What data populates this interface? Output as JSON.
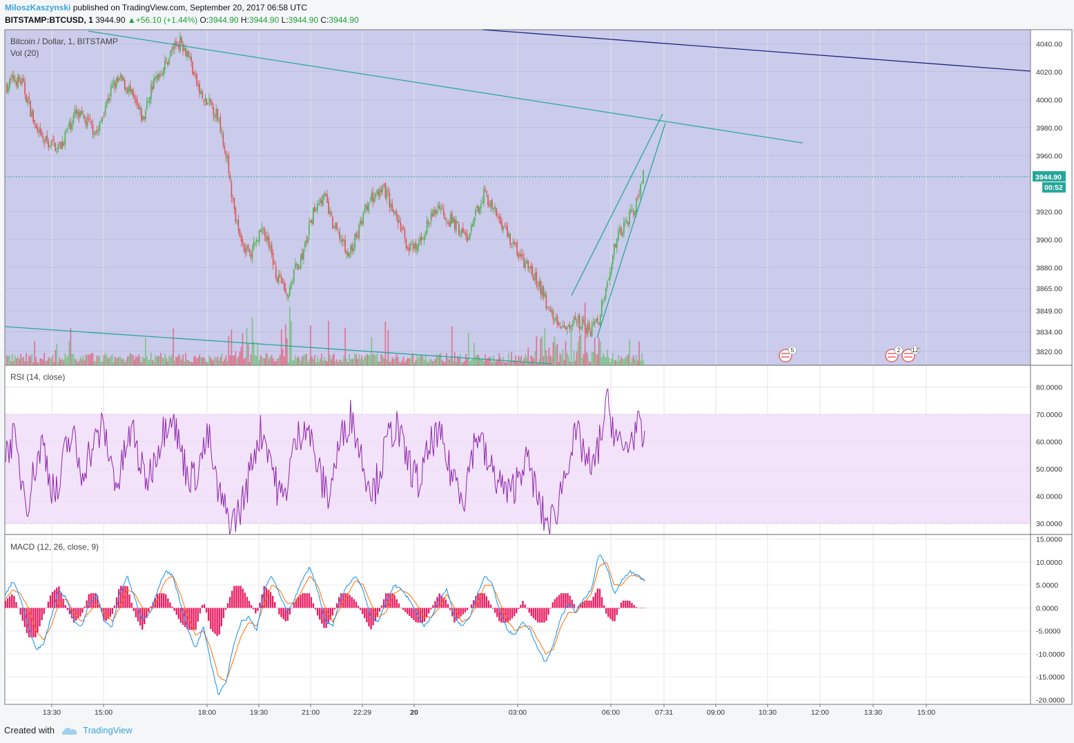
{
  "header": {
    "author": "MiloszKaszynski",
    "published_text": "published on TradingView.com, September 20, 2017 06:58 UTC",
    "symbol": "BITSTAMP:BTCUSD, 1",
    "last_price": "3944.90",
    "change": "+56.10 (+1.44%)",
    "open_label": "O:",
    "open": "3944.90",
    "high_label": "H:",
    "high": "3944.90",
    "low_label": "L:",
    "low": "3944.90",
    "close_label": "C:",
    "close": "3944.90"
  },
  "price_pane": {
    "title": "Bitcoin / Dollar, 1, BITSTAMP",
    "volume_label": "Vol (20)",
    "price_ticks": [
      "4040.00",
      "4020.00",
      "4000.00",
      "3980.00",
      "3960.00",
      "3920.00",
      "3900.00",
      "3880.00",
      "3865.00",
      "3849.00",
      "3834.00",
      "3820.00"
    ],
    "price_tick_values": [
      4040,
      4020,
      4000,
      3980,
      3960,
      3920,
      3900,
      3880,
      3865,
      3849,
      3834,
      3820
    ],
    "current_price_tag": "3944.90",
    "countdown_tag": "00:52",
    "event_badges": [
      "5",
      "2",
      "12"
    ]
  },
  "rsi_pane": {
    "title": "RSI (14, close)",
    "ticks": [
      "80.0000",
      "70.0000",
      "60.0000",
      "50.0000",
      "40.0000",
      "30.0000"
    ],
    "tick_values": [
      80,
      70,
      60,
      50,
      40,
      30
    ]
  },
  "macd_pane": {
    "title": "MACD (12, 26, close, 9)",
    "ticks": [
      "15.0000",
      "10.0000",
      "5.0000",
      "0.0000",
      "-5.0000",
      "-10.0000",
      "-15.0000",
      "-20.0000"
    ],
    "tick_values": [
      15,
      10,
      5,
      0,
      -5,
      -10,
      -15,
      -20
    ]
  },
  "time_axis": {
    "labels": [
      "13:30",
      "15:00",
      "18:00",
      "19:30",
      "21:00",
      "22:29",
      "20",
      "03:00",
      "06:00",
      "07:31",
      "09:00",
      "10:30",
      "12:00",
      "13:30",
      "15:00"
    ]
  },
  "footer": {
    "created_with": "Created with",
    "brand": "TradingView"
  },
  "colors": {
    "price_bg": "#cbcbeb",
    "rsi_band": "#f2e2fa",
    "rsi_line": "#8e24aa",
    "macd_line": "#2196f3",
    "signal_line": "#ff6d00",
    "histogram": "#e91e63",
    "candle_up": "#4caf50",
    "candle_down": "#d9534f",
    "trendline": "#26a69a",
    "trendline_dark": "#1a237e",
    "price_tag": "#26a69a"
  },
  "chart_data": [
    {
      "type": "candlestick",
      "name": "Bitcoin / Dollar, 1, BITSTAMP",
      "ylim": [
        3810,
        4050
      ],
      "x_labels": [
        "13:30",
        "15:00",
        "18:00",
        "19:30",
        "21:00",
        "22:29",
        "20",
        "03:00",
        "06:00",
        "07:31"
      ],
      "y": [
        4010,
        4015,
        4012,
        3995,
        3975,
        3970,
        3968,
        3966,
        3978,
        3990,
        3986,
        3982,
        3976,
        3996,
        4010,
        4014,
        4008,
        3996,
        3985,
        4008,
        4018,
        4026,
        4038,
        4042,
        4032,
        4012,
        3998,
        3996,
        3986,
        3960,
        3920,
        3900,
        3890,
        3900,
        3908,
        3885,
        3870,
        3862,
        3878,
        3888,
        3910,
        3928,
        3930,
        3910,
        3902,
        3888,
        3900,
        3916,
        3928,
        3932,
        3935,
        3920,
        3908,
        3894,
        3892,
        3905,
        3915,
        3925,
        3916,
        3912,
        3905,
        3900,
        3920,
        3935,
        3922,
        3915,
        3905,
        3895,
        3885,
        3878,
        3870,
        3858,
        3845,
        3838,
        3840,
        3842,
        3840,
        3835,
        3840,
        3862,
        3892,
        3905,
        3915,
        3925,
        3944.9
      ]
    },
    {
      "type": "line",
      "name": "RSI (14, close)",
      "ylim": [
        26,
        88
      ],
      "y": [
        55,
        62,
        48,
        38,
        52,
        60,
        45,
        40,
        58,
        62,
        48,
        55,
        60,
        66,
        52,
        44,
        58,
        64,
        50,
        46,
        56,
        64,
        72,
        60,
        50,
        46,
        54,
        62,
        44,
        36,
        30,
        34,
        42,
        56,
        64,
        58,
        44,
        38,
        54,
        62,
        68,
        56,
        46,
        40,
        54,
        64,
        70,
        58,
        48,
        42,
        52,
        62,
        66,
        56,
        50,
        44,
        54,
        62,
        60,
        50,
        46,
        40,
        56,
        64,
        52,
        48,
        44,
        40,
        46,
        54,
        48,
        36,
        30,
        32,
        44,
        56,
        62,
        56,
        48,
        60,
        74,
        64,
        56,
        60,
        66,
        58
      ]
    },
    {
      "type": "line",
      "name": "MACD (12, 26, close, 9)",
      "ylim": [
        -21,
        16
      ],
      "series": [
        {
          "name": "MACD",
          "y": [
            3,
            6,
            2,
            -4,
            -9,
            -8,
            -2,
            4,
            2,
            -3,
            -4,
            1,
            3,
            -3,
            -4,
            3,
            7,
            2,
            -3,
            -1,
            4,
            8,
            7,
            1,
            -5,
            -9,
            -4,
            -12,
            -19,
            -16,
            -8,
            -3,
            -2,
            -5,
            4,
            7,
            3,
            -1,
            2,
            6,
            9,
            4,
            -3,
            -4,
            2,
            5,
            7,
            4,
            -2,
            -3,
            1,
            5,
            4,
            2,
            -1,
            -4,
            -2,
            2,
            4,
            -2,
            -4,
            -2,
            3,
            7,
            5,
            -1,
            -5,
            -6,
            -3,
            -5,
            -9,
            -12,
            -8,
            -2,
            1,
            -1,
            2,
            4,
            12,
            9,
            3,
            6,
            8,
            7,
            6
          ]
        },
        {
          "name": "Signal",
          "y": [
            2,
            4,
            3,
            0,
            -5,
            -7,
            -4,
            1,
            2,
            -1,
            -3,
            -1,
            1,
            -1,
            -3,
            0,
            4,
            3,
            0,
            -1,
            2,
            6,
            7,
            3,
            -2,
            -6,
            -5,
            -9,
            -15,
            -16,
            -11,
            -6,
            -3,
            -4,
            1,
            5,
            4,
            1,
            1,
            4,
            7,
            5,
            0,
            -3,
            0,
            3,
            6,
            5,
            1,
            -2,
            -1,
            3,
            4,
            3,
            1,
            -2,
            -2,
            0,
            3,
            0,
            -3,
            -2,
            1,
            5,
            5,
            1,
            -3,
            -5,
            -4,
            -4,
            -7,
            -10,
            -9,
            -4,
            -1,
            -1,
            1,
            3,
            9,
            10,
            5,
            5,
            7,
            7,
            6
          ]
        }
      ]
    }
  ]
}
